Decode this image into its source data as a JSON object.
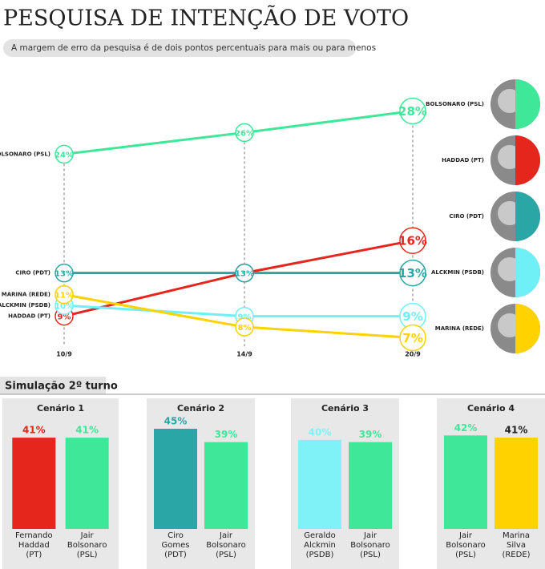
{
  "chart_data": [
    {
      "type": "line",
      "title": "PESQUISA DE INTENÇÃO DE VOTO",
      "subtitle": "A margem de erro da pesquisa é de dois pontos percentuais para mais ou para menos",
      "categories": [
        "10/9",
        "14/9",
        "20/9"
      ],
      "series": [
        {
          "name": "BOLSONARO (PSL)",
          "color": "#3fe898",
          "values": [
            24,
            26,
            28
          ],
          "value_labels": [
            "24%",
            "26%",
            "28%"
          ]
        },
        {
          "name": "HADDAD (PT)",
          "color": "#e4261d",
          "values": [
            9,
            13,
            16
          ],
          "value_labels": [
            "9%",
            "13%",
            "16%"
          ]
        },
        {
          "name": "CIRO (PDT)",
          "color": "#2aa6a6",
          "values": [
            13,
            13,
            13
          ],
          "value_labels": [
            "13%",
            "13%",
            "13%"
          ]
        },
        {
          "name": "ALCKMIN (PSDB)",
          "color": "#6ff0f6",
          "values": [
            10,
            9,
            9
          ],
          "value_labels": [
            "10%",
            "9%",
            "9%"
          ]
        },
        {
          "name": "MARINA (REDE)",
          "color": "#ffd200",
          "values": [
            11,
            8,
            7
          ],
          "value_labels": [
            "11%",
            "8%",
            "7%"
          ]
        }
      ],
      "ylim": [
        6,
        29
      ]
    },
    {
      "type": "bar",
      "title": "Cenário 1",
      "categories": [
        "Fernando Haddad (PT)",
        "Jair Bolsonaro (PSL)"
      ],
      "values": [
        41,
        41
      ],
      "value_labels": [
        "41%",
        "41%"
      ],
      "colors": [
        "#e4261d",
        "#3fe898"
      ],
      "ylim": [
        0,
        45
      ]
    },
    {
      "type": "bar",
      "title": "Cenário 2",
      "categories": [
        "Ciro Gomes (PDT)",
        "Jair Bolsonaro (PSL)"
      ],
      "values": [
        45,
        39
      ],
      "value_labels": [
        "45%",
        "39%"
      ],
      "colors": [
        "#2aa6a6",
        "#3fe898"
      ],
      "ylim": [
        0,
        45
      ]
    },
    {
      "type": "bar",
      "title": "Cenário 3",
      "categories": [
        "Geraldo Alckmin (PSDB)",
        "Jair Bolsonaro (PSL)"
      ],
      "values": [
        40,
        39
      ],
      "value_labels": [
        "40%",
        "39%"
      ],
      "colors": [
        "#7ff2f8",
        "#3fe898"
      ],
      "ylim": [
        0,
        45
      ]
    },
    {
      "type": "bar",
      "title": "Cenário 4",
      "categories": [
        "Jair Bolsonaro (PSL)",
        "Marina Silva (REDE)"
      ],
      "values": [
        42,
        41
      ],
      "value_labels": [
        "42%",
        "41%"
      ],
      "colors": [
        "#3fe898",
        "#ffd200"
      ],
      "ylim": [
        0,
        45
      ]
    }
  ],
  "section_title": "Simulação 2º turno"
}
